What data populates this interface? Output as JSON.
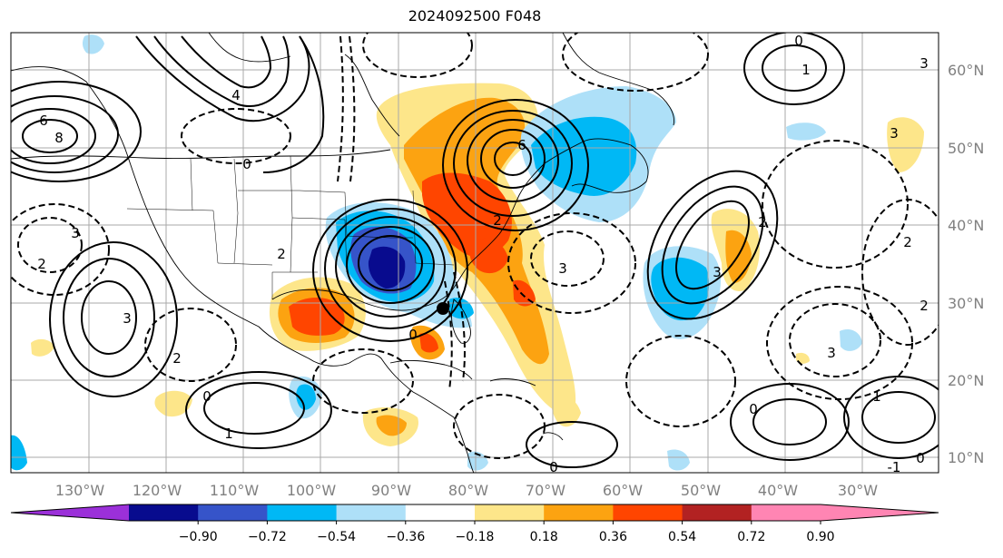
{
  "title": "2024092500 F048",
  "map": {
    "lon_labels": [
      "130°W",
      "120°W",
      "110°W",
      "100°W",
      "90°W",
      "80°W",
      "70°W",
      "60°W",
      "50°W",
      "40°W",
      "30°W"
    ],
    "lat_labels": [
      "60°N",
      "50°N",
      "40°N",
      "30°N",
      "20°N",
      "10°N"
    ],
    "contour_labels": [
      "6",
      "8",
      "6",
      "4",
      "3",
      "3",
      "2",
      "3",
      "0",
      "2",
      "2",
      "3",
      "3",
      "0",
      "0",
      "1",
      "2",
      "0",
      "0",
      "3",
      "2",
      "3",
      "0",
      "-1",
      "2",
      "1",
      "1",
      "2",
      "0"
    ],
    "colors": {
      "fill_pos_weak": "#fde68a",
      "fill_pos_mid": "#fca311",
      "fill_pos_strong": "#ff4500",
      "fill_neg_weak": "#aee0f8",
      "fill_neg_mid": "#00b8f5",
      "fill_neg_strong": "#3654c9",
      "fill_neg_core": "#080b8e"
    }
  },
  "colorbar": {
    "ticks": [
      "−0.90",
      "−0.72",
      "−0.54",
      "−0.36",
      "−0.18",
      "0.18",
      "0.36",
      "0.54",
      "0.72",
      "0.90"
    ],
    "colors": [
      "#9b30d9",
      "#080b8e",
      "#3654c9",
      "#00b8f5",
      "#aee0f8",
      "#ffffff",
      "#fde68a",
      "#fca311",
      "#ff4500",
      "#b22222",
      "#ff85b3",
      "#ff85b3"
    ]
  }
}
